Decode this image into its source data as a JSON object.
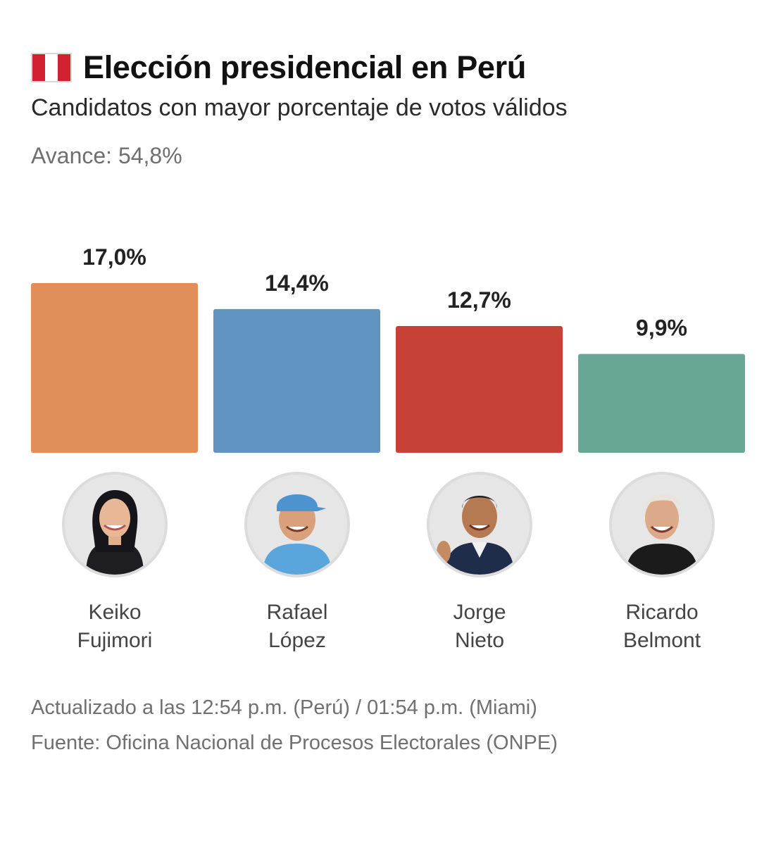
{
  "header": {
    "title": "Elección presidencial en Perú",
    "subtitle": "Candidatos con mayor porcentaje de votos válidos",
    "progress": "Avance: 54,8%",
    "flag_icon": "peru-flag-icon"
  },
  "colors": {
    "red_flag": "#d2212f",
    "fujimori": "#e28e5b",
    "lopez": "#6194c0",
    "nieto": "#c84137",
    "belmont": "#68a796"
  },
  "candidates": [
    {
      "first": "Keiko",
      "last": "Fujimori",
      "value_label": "17,0%"
    },
    {
      "first": "Rafael",
      "last": "López",
      "value_label": "14,4%"
    },
    {
      "first": "Jorge",
      "last": "Nieto",
      "value_label": "12,7%"
    },
    {
      "first": "Ricardo",
      "last": "Belmont",
      "value_label": "9,9%"
    }
  ],
  "chart_data": {
    "type": "bar",
    "title": "Elección presidencial en Perú",
    "subtitle": "Candidatos con mayor porcentaje de votos válidos",
    "categories": [
      "Keiko Fujimori",
      "Rafael López",
      "Jorge Nieto",
      "Ricardo Belmont"
    ],
    "values": [
      17.0,
      14.4,
      12.7,
      9.9
    ],
    "data_labels": [
      "17,0%",
      "14,4%",
      "12,7%",
      "9,9%"
    ],
    "colors": [
      "#e28e5b",
      "#6194c0",
      "#c84137",
      "#68a796"
    ],
    "unit": "%",
    "ylim": [
      0,
      17.0
    ],
    "grid": false,
    "legend": "none"
  },
  "footer": {
    "updated": "Actualizado a las 12:54 p.m. (Perú) / 01:54 p.m. (Miami)",
    "source": "Fuente: Oficina Nacional de Procesos Electorales (ONPE)"
  }
}
